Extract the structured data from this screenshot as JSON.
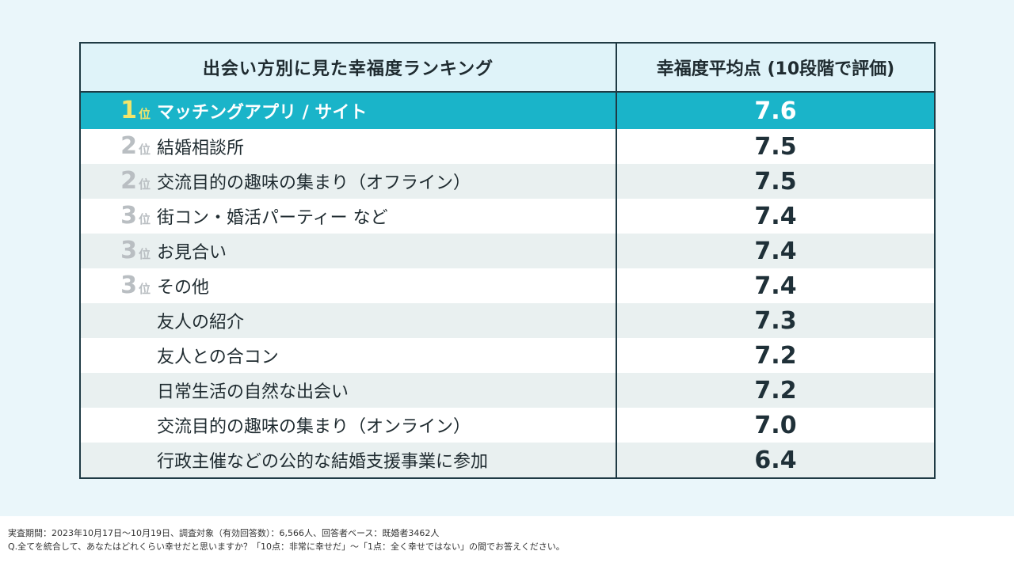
{
  "chart_data": {
    "type": "table",
    "columns": [
      "出会い方別に見た幸福度ランキング",
      "幸福度平均点 (10段階で評価)"
    ],
    "rows": [
      {
        "rank": "1",
        "rank_unit": "位",
        "label": "マッチングアプリ / サイト",
        "value": "7.6"
      },
      {
        "rank": "2",
        "rank_unit": "位",
        "label": "結婚相談所",
        "value": "7.5"
      },
      {
        "rank": "2",
        "rank_unit": "位",
        "label": "交流目的の趣味の集まり（オフライン）",
        "value": "7.5"
      },
      {
        "rank": "3",
        "rank_unit": "位",
        "label": "街コン・婚活パーティー など",
        "value": "7.4"
      },
      {
        "rank": "3",
        "rank_unit": "位",
        "label": "お見合い",
        "value": "7.4"
      },
      {
        "rank": "3",
        "rank_unit": "位",
        "label": "その他",
        "value": "7.4"
      },
      {
        "rank": "",
        "rank_unit": "",
        "label": "友人の紹介",
        "value": "7.3"
      },
      {
        "rank": "",
        "rank_unit": "",
        "label": "友人との合コン",
        "value": "7.2"
      },
      {
        "rank": "",
        "rank_unit": "",
        "label": "日常生活の自然な出会い",
        "value": "7.2"
      },
      {
        "rank": "",
        "rank_unit": "",
        "label": "交流目的の趣味の集まり（オンライン）",
        "value": "7.0"
      },
      {
        "rank": "",
        "rank_unit": "",
        "label": "行政主催などの公的な結婚支援事業に参加",
        "value": "6.4"
      }
    ],
    "highlight_color": "#1ab4c9",
    "rank_color": "#f3e56a"
  },
  "notes": {
    "line1": "実査期間：2023年10月17日～10月19日、調査対象（有効回答数）：6,566人、回答者ベース：既婚者3462人",
    "line2": "Q.全てを統合して、あなたはどれくらい幸せだと思いますか？「10点：非常に幸せだ」～「1点：全く幸せではない」の間でお答えください。"
  }
}
